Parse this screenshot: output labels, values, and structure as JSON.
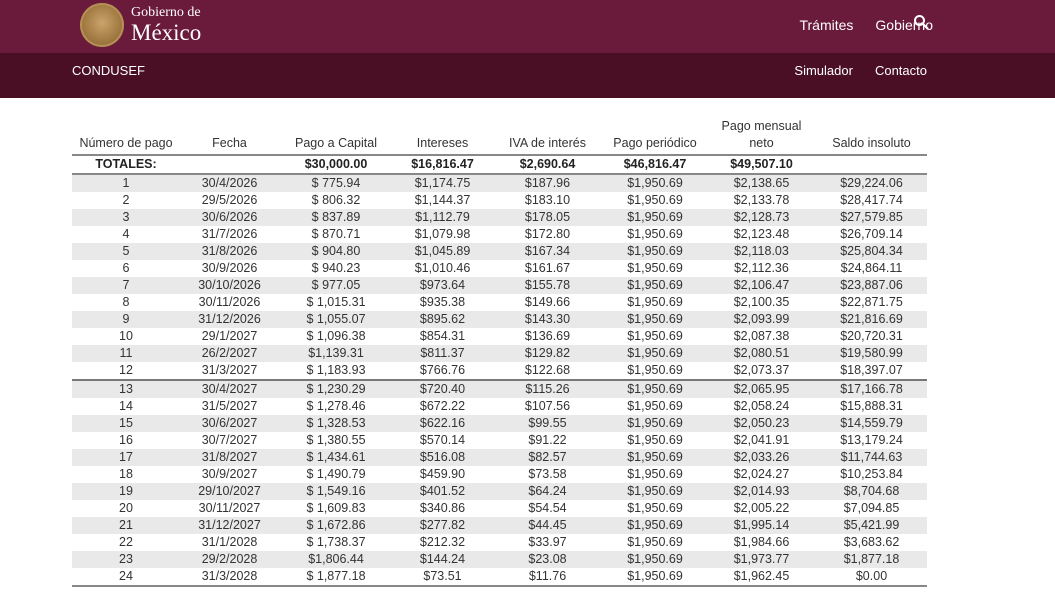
{
  "header": {
    "logo_small": "Gobierno de",
    "logo_big": "México",
    "nav": [
      "Trámites",
      "Gobierno"
    ]
  },
  "subheader": {
    "brand": "CONDUSEF",
    "nav": [
      "Simulador",
      "Contacto"
    ]
  },
  "table": {
    "columns": [
      "Número de pago",
      "Fecha",
      "Pago a Capital",
      "Intereses",
      "IVA de interés",
      "Pago periódico",
      "Pago mensual neto",
      "Saldo insoluto"
    ],
    "totals": [
      "TOTALES:",
      "",
      "$30,000.00",
      "$16,816.47",
      "$2,690.64",
      "$46,816.47",
      "$49,507.10",
      ""
    ],
    "rows": [
      [
        "1",
        "30/4/2026",
        "$ 775.94",
        "$1,174.75",
        "$187.96",
        "$1,950.69",
        "$2,138.65",
        "$29,224.06"
      ],
      [
        "2",
        "29/5/2026",
        "$ 806.32",
        "$1,144.37",
        "$183.10",
        "$1,950.69",
        "$2,133.78",
        "$28,417.74"
      ],
      [
        "3",
        "30/6/2026",
        "$ 837.89",
        "$1,112.79",
        "$178.05",
        "$1,950.69",
        "$2,128.73",
        "$27,579.85"
      ],
      [
        "4",
        "31/7/2026",
        "$ 870.71",
        "$1,079.98",
        "$172.80",
        "$1,950.69",
        "$2,123.48",
        "$26,709.14"
      ],
      [
        "5",
        "31/8/2026",
        "$ 904.80",
        "$1,045.89",
        "$167.34",
        "$1,950.69",
        "$2,118.03",
        "$25,804.34"
      ],
      [
        "6",
        "30/9/2026",
        "$ 940.23",
        "$1,010.46",
        "$161.67",
        "$1,950.69",
        "$2,112.36",
        "$24,864.11"
      ],
      [
        "7",
        "30/10/2026",
        "$ 977.05",
        "$973.64",
        "$155.78",
        "$1,950.69",
        "$2,106.47",
        "$23,887.06"
      ],
      [
        "8",
        "30/11/2026",
        "$ 1,015.31",
        "$935.38",
        "$149.66",
        "$1,950.69",
        "$2,100.35",
        "$22,871.75"
      ],
      [
        "9",
        "31/12/2026",
        "$ 1,055.07",
        "$895.62",
        "$143.30",
        "$1,950.69",
        "$2,093.99",
        "$21,816.69"
      ],
      [
        "10",
        "29/1/2027",
        "$ 1,096.38",
        "$854.31",
        "$136.69",
        "$1,950.69",
        "$2,087.38",
        "$20,720.31"
      ],
      [
        "11",
        "26/2/2027",
        "$1,139.31",
        "$811.37",
        "$129.82",
        "$1,950.69",
        "$2,080.51",
        "$19,580.99"
      ],
      [
        "12",
        "31/3/2027",
        "$ 1,183.93",
        "$766.76",
        "$122.68",
        "$1,950.69",
        "$2,073.37",
        "$18,397.07"
      ],
      [
        "13",
        "30/4/2027",
        "$ 1,230.29",
        "$720.40",
        "$115.26",
        "$1,950.69",
        "$2,065.95",
        "$17,166.78"
      ],
      [
        "14",
        "31/5/2027",
        "$ 1,278.46",
        "$672.22",
        "$107.56",
        "$1,950.69",
        "$2,058.24",
        "$15,888.31"
      ],
      [
        "15",
        "30/6/2027",
        "$ 1,328.53",
        "$622.16",
        "$99.55",
        "$1,950.69",
        "$2,050.23",
        "$14,559.79"
      ],
      [
        "16",
        "30/7/2027",
        "$ 1,380.55",
        "$570.14",
        "$91.22",
        "$1,950.69",
        "$2,041.91",
        "$13,179.24"
      ],
      [
        "17",
        "31/8/2027",
        "$ 1,434.61",
        "$516.08",
        "$82.57",
        "$1,950.69",
        "$2,033.26",
        "$11,744.63"
      ],
      [
        "18",
        "30/9/2027",
        "$ 1,490.79",
        "$459.90",
        "$73.58",
        "$1,950.69",
        "$2,024.27",
        "$10,253.84"
      ],
      [
        "19",
        "29/10/2027",
        "$ 1,549.16",
        "$401.52",
        "$64.24",
        "$1,950.69",
        "$2,014.93",
        "$8,704.68"
      ],
      [
        "20",
        "30/11/2027",
        "$ 1,609.83",
        "$340.86",
        "$54.54",
        "$1,950.69",
        "$2,005.22",
        "$7,094.85"
      ],
      [
        "21",
        "31/12/2027",
        "$ 1,672.86",
        "$277.82",
        "$44.45",
        "$1,950.69",
        "$1,995.14",
        "$5,421.99"
      ],
      [
        "22",
        "31/1/2028",
        "$ 1,738.37",
        "$212.32",
        "$33.97",
        "$1,950.69",
        "$1,984.66",
        "$3,683.62"
      ],
      [
        "23",
        "29/2/2028",
        "$1,806.44",
        "$144.24",
        "$23.08",
        "$1,950.69",
        "$1,973.77",
        "$1,877.18"
      ],
      [
        "24",
        "31/3/2028",
        "$ 1,877.18",
        "$73.51",
        "$11.76",
        "$1,950.69",
        "$1,962.45",
        "$0.00"
      ]
    ]
  },
  "colors": {
    "header_bg": "#6a1a3a",
    "subheader_bg": "#4a0f25",
    "row_alt": "#e9e9e9"
  },
  "icons": {
    "seal": "mexico-coat-of-arms",
    "search": "magnifier"
  }
}
